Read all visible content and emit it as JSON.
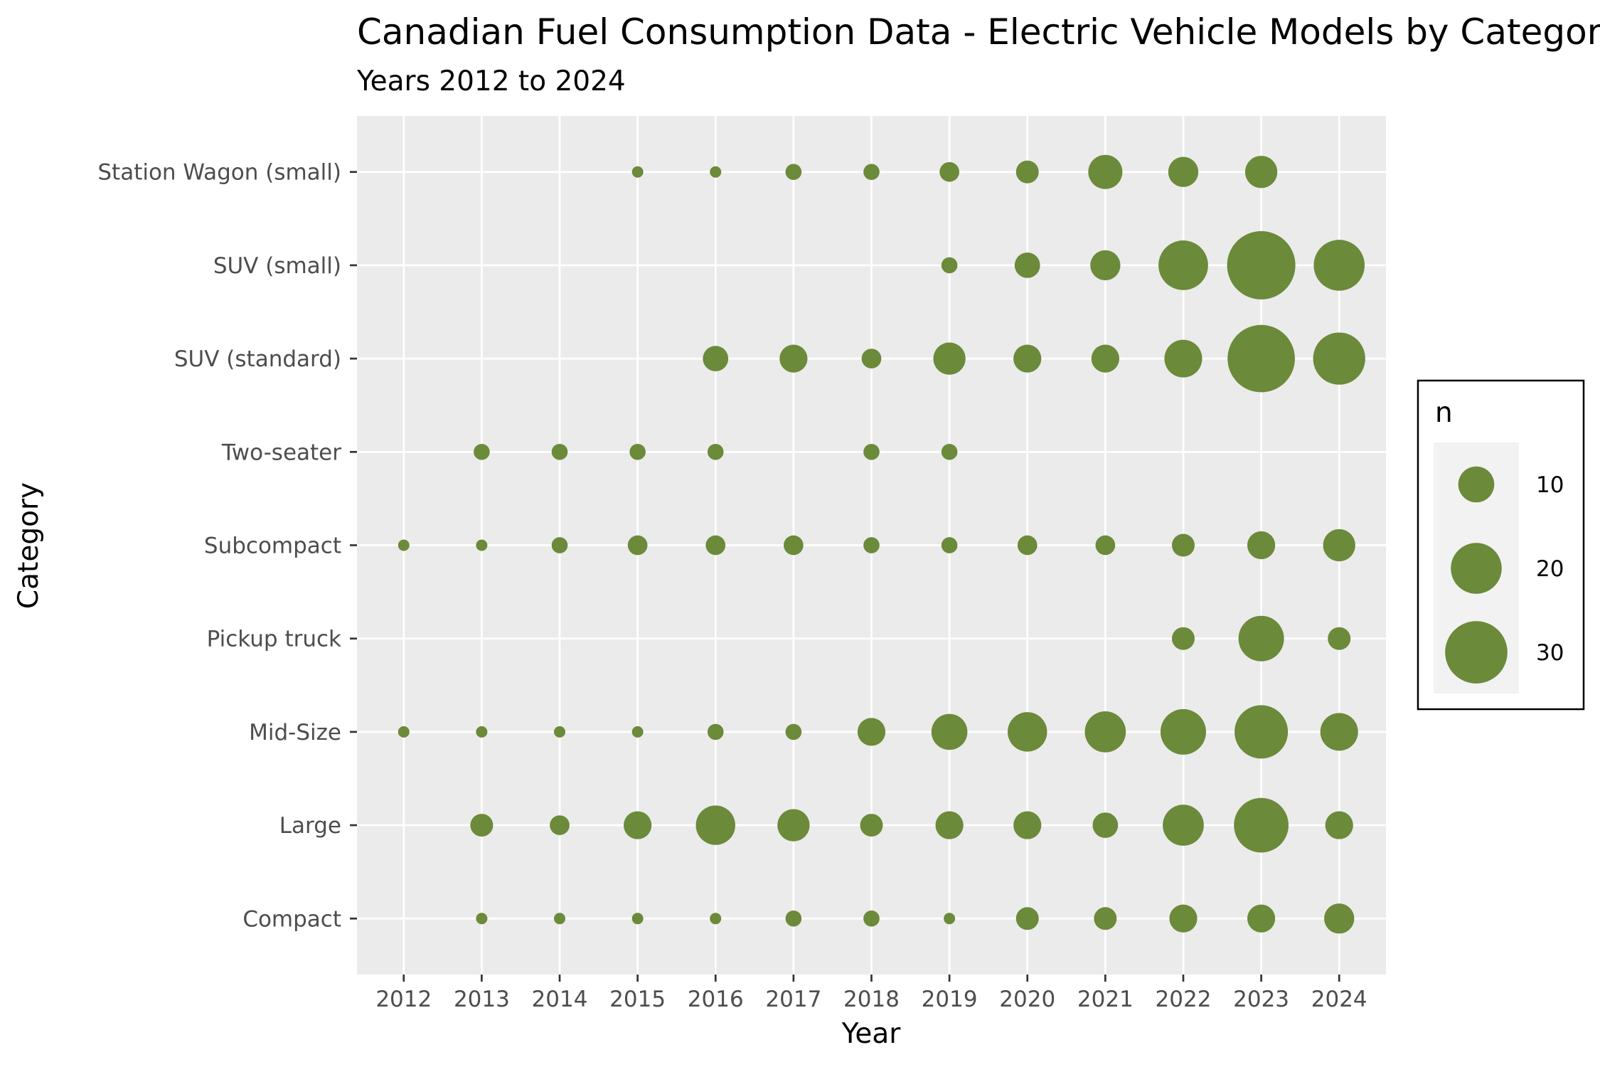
{
  "chart_data": {
    "type": "scatter",
    "title": "Canadian Fuel Consumption Data - Electric Vehicle Models by Category",
    "subtitle": "Years 2012 to 2024",
    "xlabel": "Year",
    "ylabel": "Category",
    "x_categories": [
      "2012",
      "2013",
      "2014",
      "2015",
      "2016",
      "2017",
      "2018",
      "2019",
      "2020",
      "2021",
      "2022",
      "2023",
      "2024"
    ],
    "y_categories": [
      "Compact",
      "Large",
      "Mid-Size",
      "Pickup truck",
      "Subcompact",
      "Two-seater",
      "SUV (standard)",
      "SUV (small)",
      "Station Wagon (small)"
    ],
    "size_legend": {
      "title": "n",
      "breaks": [
        10,
        20,
        30
      ],
      "labels": [
        "10",
        "20",
        "30"
      ]
    },
    "grid": true,
    "legend_position": "right",
    "colors": {
      "point": "#6b8a3a",
      "panel": "#ebebeb",
      "grid": "#ffffff",
      "legend_key_bg": "#f2f2f2"
    },
    "points": [
      {
        "category": "Station Wagon (small)",
        "year": "2015",
        "n": 1
      },
      {
        "category": "Station Wagon (small)",
        "year": "2016",
        "n": 1
      },
      {
        "category": "Station Wagon (small)",
        "year": "2017",
        "n": 2
      },
      {
        "category": "Station Wagon (small)",
        "year": "2018",
        "n": 2
      },
      {
        "category": "Station Wagon (small)",
        "year": "2019",
        "n": 3
      },
      {
        "category": "Station Wagon (small)",
        "year": "2020",
        "n": 4
      },
      {
        "category": "Station Wagon (small)",
        "year": "2021",
        "n": 9
      },
      {
        "category": "Station Wagon (small)",
        "year": "2022",
        "n": 7
      },
      {
        "category": "Station Wagon (small)",
        "year": "2023",
        "n": 8
      },
      {
        "category": "SUV (small)",
        "year": "2019",
        "n": 2
      },
      {
        "category": "SUV (small)",
        "year": "2020",
        "n": 5
      },
      {
        "category": "SUV (small)",
        "year": "2021",
        "n": 7
      },
      {
        "category": "SUV (small)",
        "year": "2022",
        "n": 19
      },
      {
        "category": "SUV (small)",
        "year": "2023",
        "n": 36
      },
      {
        "category": "SUV (small)",
        "year": "2024",
        "n": 20
      },
      {
        "category": "SUV (standard)",
        "year": "2016",
        "n": 5
      },
      {
        "category": "SUV (standard)",
        "year": "2017",
        "n": 6
      },
      {
        "category": "SUV (standard)",
        "year": "2018",
        "n": 3
      },
      {
        "category": "SUV (standard)",
        "year": "2019",
        "n": 8
      },
      {
        "category": "SUV (standard)",
        "year": "2020",
        "n": 6
      },
      {
        "category": "SUV (standard)",
        "year": "2021",
        "n": 6
      },
      {
        "category": "SUV (standard)",
        "year": "2022",
        "n": 11
      },
      {
        "category": "SUV (standard)",
        "year": "2023",
        "n": 35
      },
      {
        "category": "SUV (standard)",
        "year": "2024",
        "n": 21
      },
      {
        "category": "Two-seater",
        "year": "2013",
        "n": 2
      },
      {
        "category": "Two-seater",
        "year": "2014",
        "n": 2
      },
      {
        "category": "Two-seater",
        "year": "2015",
        "n": 2
      },
      {
        "category": "Two-seater",
        "year": "2016",
        "n": 2
      },
      {
        "category": "Two-seater",
        "year": "2018",
        "n": 2
      },
      {
        "category": "Two-seater",
        "year": "2019",
        "n": 2
      },
      {
        "category": "Subcompact",
        "year": "2012",
        "n": 1
      },
      {
        "category": "Subcompact",
        "year": "2013",
        "n": 1
      },
      {
        "category": "Subcompact",
        "year": "2014",
        "n": 2
      },
      {
        "category": "Subcompact",
        "year": "2015",
        "n": 3
      },
      {
        "category": "Subcompact",
        "year": "2016",
        "n": 3
      },
      {
        "category": "Subcompact",
        "year": "2017",
        "n": 3
      },
      {
        "category": "Subcompact",
        "year": "2018",
        "n": 2
      },
      {
        "category": "Subcompact",
        "year": "2019",
        "n": 2
      },
      {
        "category": "Subcompact",
        "year": "2020",
        "n": 3
      },
      {
        "category": "Subcompact",
        "year": "2021",
        "n": 3
      },
      {
        "category": "Subcompact",
        "year": "2022",
        "n": 4
      },
      {
        "category": "Subcompact",
        "year": "2023",
        "n": 6
      },
      {
        "category": "Subcompact",
        "year": "2024",
        "n": 8
      },
      {
        "category": "Pickup truck",
        "year": "2022",
        "n": 4
      },
      {
        "category": "Pickup truck",
        "year": "2023",
        "n": 16
      },
      {
        "category": "Pickup truck",
        "year": "2024",
        "n": 4
      },
      {
        "category": "Mid-Size",
        "year": "2012",
        "n": 1
      },
      {
        "category": "Mid-Size",
        "year": "2013",
        "n": 1
      },
      {
        "category": "Mid-Size",
        "year": "2014",
        "n": 1
      },
      {
        "category": "Mid-Size",
        "year": "2015",
        "n": 1
      },
      {
        "category": "Mid-Size",
        "year": "2016",
        "n": 2
      },
      {
        "category": "Mid-Size",
        "year": "2017",
        "n": 2
      },
      {
        "category": "Mid-Size",
        "year": "2018",
        "n": 6
      },
      {
        "category": "Mid-Size",
        "year": "2019",
        "n": 10
      },
      {
        "category": "Mid-Size",
        "year": "2020",
        "n": 12
      },
      {
        "category": "Mid-Size",
        "year": "2021",
        "n": 13
      },
      {
        "category": "Mid-Size",
        "year": "2022",
        "n": 16
      },
      {
        "category": "Mid-Size",
        "year": "2023",
        "n": 22
      },
      {
        "category": "Mid-Size",
        "year": "2024",
        "n": 11
      },
      {
        "category": "Large",
        "year": "2013",
        "n": 4
      },
      {
        "category": "Large",
        "year": "2014",
        "n": 3
      },
      {
        "category": "Large",
        "year": "2015",
        "n": 6
      },
      {
        "category": "Large",
        "year": "2016",
        "n": 12
      },
      {
        "category": "Large",
        "year": "2017",
        "n": 8
      },
      {
        "category": "Large",
        "year": "2018",
        "n": 4
      },
      {
        "category": "Large",
        "year": "2019",
        "n": 6
      },
      {
        "category": "Large",
        "year": "2020",
        "n": 6
      },
      {
        "category": "Large",
        "year": "2021",
        "n": 5
      },
      {
        "category": "Large",
        "year": "2022",
        "n": 13
      },
      {
        "category": "Large",
        "year": "2023",
        "n": 23
      },
      {
        "category": "Large",
        "year": "2024",
        "n": 6
      },
      {
        "category": "Compact",
        "year": "2013",
        "n": 1
      },
      {
        "category": "Compact",
        "year": "2014",
        "n": 1
      },
      {
        "category": "Compact",
        "year": "2015",
        "n": 1
      },
      {
        "category": "Compact",
        "year": "2016",
        "n": 1
      },
      {
        "category": "Compact",
        "year": "2017",
        "n": 2
      },
      {
        "category": "Compact",
        "year": "2018",
        "n": 2
      },
      {
        "category": "Compact",
        "year": "2019",
        "n": 1
      },
      {
        "category": "Compact",
        "year": "2020",
        "n": 4
      },
      {
        "category": "Compact",
        "year": "2021",
        "n": 4
      },
      {
        "category": "Compact",
        "year": "2022",
        "n": 6
      },
      {
        "category": "Compact",
        "year": "2023",
        "n": 6
      },
      {
        "category": "Compact",
        "year": "2024",
        "n": 7
      }
    ]
  }
}
